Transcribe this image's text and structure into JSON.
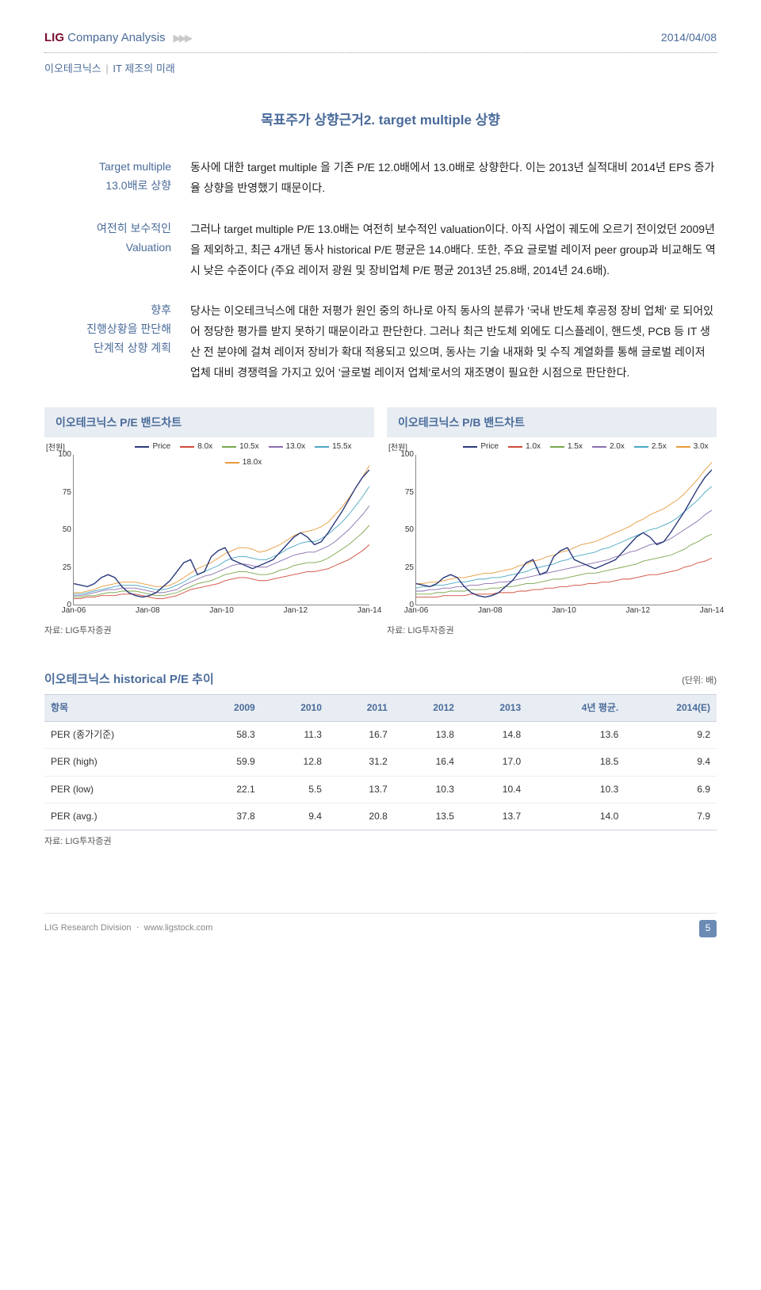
{
  "header": {
    "brand_lig": "LIG",
    "brand_rest": " Company Analysis",
    "arrows": "▶▶▶",
    "date": "2014/04/08",
    "subhead_company": "이오테크닉스",
    "subhead_sep": "|",
    "subhead_desc": "IT 제조의 미래"
  },
  "title": "목표주가 상향근거2. target multiple 상향",
  "paragraphs": [
    {
      "label": "Target multiple\n13.0배로 상향",
      "text": "동사에 대한 target multiple 을 기존 P/E 12.0배에서 13.0배로 상향한다. 이는 2013년 실적대비 2014년 EPS 증가율 상향을 반영했기 때문이다."
    },
    {
      "label": "여전히 보수적인\nValuation",
      "text": "그러나 target multiple P/E 13.0배는 여전히 보수적인 valuation이다. 아직 사업이 궤도에 오르기 전이었던 2009년을 제외하고, 최근 4개년 동사 historical P/E 평균은 14.0배다. 또한, 주요 글로벌 레이저 peer group과 비교해도 역시 낮은 수준이다 (주요 레이저 광원 및 장비업체 P/E 평균 2013년 25.8배, 2014년 24.6배)."
    },
    {
      "label": "향후\n진행상황을 판단해\n단계적 상향 계획",
      "text": "당사는 이오테크닉스에 대한 저평가 원인 중의 하나로 아직 동사의 분류가 '국내 반도체 후공정 장비 업체' 로 되어있어 정당한 평가를 받지 못하기 때문이라고 판단한다. 그러나 최근 반도체 외에도 디스플레이, 핸드셋, PCB 등 IT 생산 전 분야에 걸쳐 레이저 장비가 확대 적용되고 있으며, 동사는 기술 내재화 및 수직 계열화를 통해 글로벌 레이저 업체 대비 경쟁력을 가지고 있어 '글로벌 레이저 업체'로서의 재조명이 필요한 시점으로 판단한다."
    }
  ],
  "charts": {
    "yunit": "[천원]",
    "ylim": [
      0,
      100
    ],
    "yticks": [
      0,
      25,
      50,
      75,
      100
    ],
    "xticks": [
      "Jan-06",
      "Jan-08",
      "Jan-10",
      "Jan-12",
      "Jan-14"
    ],
    "colors": {
      "price": "#2b3a7a",
      "s1": "#d14b3a",
      "s2": "#7aa64b",
      "s3": "#8a6fb0",
      "s4": "#4aa8c4",
      "s5": "#e69a3c"
    },
    "left": {
      "title": "이오테크닉스 P/E 밴드차트",
      "source": "자료: LIG투자증권",
      "legend": [
        {
          "label": "Price",
          "colorKey": "price"
        },
        {
          "label": "8.0x",
          "colorKey": "s1"
        },
        {
          "label": "10.5x",
          "colorKey": "s2"
        },
        {
          "label": "13.0x",
          "colorKey": "s3"
        },
        {
          "label": "15.5x",
          "colorKey": "s4"
        },
        {
          "label": "18.0x",
          "colorKey": "s5"
        }
      ],
      "series": {
        "price": [
          14,
          13,
          12,
          14,
          18,
          20,
          18,
          12,
          8,
          6,
          5,
          6,
          8,
          12,
          16,
          22,
          28,
          30,
          20,
          22,
          32,
          36,
          38,
          30,
          28,
          26,
          24,
          26,
          28,
          30,
          35,
          40,
          45,
          48,
          45,
          40,
          42,
          48,
          55,
          62,
          70,
          78,
          85,
          90
        ],
        "s1": [
          4,
          4,
          5,
          5,
          6,
          6,
          6,
          7,
          7,
          7,
          6,
          5,
          4,
          4,
          5,
          6,
          8,
          10,
          11,
          12,
          13,
          14,
          16,
          17,
          18,
          18,
          17,
          16,
          16,
          17,
          18,
          19,
          20,
          21,
          22,
          22,
          23,
          24,
          26,
          28,
          30,
          33,
          36,
          40
        ],
        "s2": [
          5,
          5,
          6,
          6,
          7,
          8,
          8,
          9,
          9,
          9,
          8,
          7,
          6,
          6,
          7,
          8,
          10,
          12,
          14,
          15,
          16,
          18,
          20,
          21,
          22,
          22,
          21,
          20,
          20,
          21,
          23,
          24,
          26,
          27,
          28,
          28,
          29,
          31,
          34,
          37,
          40,
          44,
          48,
          53
        ],
        "s3": [
          6,
          6,
          7,
          8,
          9,
          10,
          10,
          11,
          11,
          11,
          10,
          9,
          8,
          8,
          9,
          10,
          13,
          15,
          17,
          19,
          20,
          22,
          24,
          26,
          27,
          27,
          26,
          25,
          25,
          27,
          29,
          31,
          33,
          34,
          35,
          35,
          37,
          39,
          42,
          46,
          50,
          55,
          60,
          66
        ],
        "s4": [
          7,
          7,
          8,
          9,
          10,
          11,
          12,
          13,
          13,
          13,
          12,
          11,
          10,
          10,
          11,
          13,
          15,
          18,
          20,
          22,
          24,
          26,
          29,
          31,
          32,
          32,
          31,
          30,
          30,
          32,
          34,
          37,
          39,
          41,
          42,
          42,
          44,
          47,
          51,
          55,
          60,
          66,
          72,
          79
        ],
        "s5": [
          8,
          8,
          9,
          10,
          12,
          13,
          14,
          15,
          15,
          15,
          14,
          13,
          12,
          12,
          13,
          15,
          18,
          21,
          24,
          26,
          28,
          31,
          34,
          36,
          38,
          38,
          37,
          35,
          36,
          38,
          40,
          43,
          46,
          48,
          49,
          50,
          52,
          55,
          60,
          65,
          71,
          78,
          85,
          93
        ]
      }
    },
    "right": {
      "title": "이오테크닉스 P/B 밴드차트",
      "source": "자료: LIG투자증권",
      "legend": [
        {
          "label": "Price",
          "colorKey": "price"
        },
        {
          "label": "1.0x",
          "colorKey": "s1"
        },
        {
          "label": "1.5x",
          "colorKey": "s2"
        },
        {
          "label": "2.0x",
          "colorKey": "s3"
        },
        {
          "label": "2.5x",
          "colorKey": "s4"
        },
        {
          "label": "3.0x",
          "colorKey": "s5"
        }
      ],
      "series": {
        "price": [
          14,
          13,
          12,
          14,
          18,
          20,
          18,
          12,
          8,
          6,
          5,
          6,
          8,
          12,
          16,
          22,
          28,
          30,
          20,
          22,
          32,
          36,
          38,
          30,
          28,
          26,
          24,
          26,
          28,
          30,
          35,
          40,
          45,
          48,
          45,
          40,
          42,
          48,
          55,
          62,
          70,
          78,
          85,
          90
        ],
        "s1": [
          5,
          5,
          5,
          5,
          6,
          6,
          6,
          6,
          7,
          7,
          7,
          7,
          8,
          8,
          8,
          9,
          9,
          10,
          10,
          11,
          11,
          12,
          12,
          13,
          13,
          14,
          14,
          15,
          15,
          16,
          17,
          17,
          18,
          19,
          20,
          20,
          21,
          22,
          23,
          25,
          26,
          28,
          29,
          31
        ],
        "s2": [
          7,
          7,
          7,
          8,
          8,
          9,
          9,
          9,
          10,
          10,
          10,
          11,
          11,
          12,
          12,
          13,
          14,
          14,
          15,
          16,
          17,
          17,
          18,
          19,
          20,
          21,
          21,
          22,
          23,
          24,
          25,
          26,
          27,
          29,
          30,
          31,
          32,
          33,
          35,
          37,
          40,
          42,
          45,
          47
        ],
        "s3": [
          9,
          9,
          10,
          10,
          11,
          11,
          12,
          12,
          13,
          13,
          14,
          14,
          15,
          15,
          16,
          17,
          18,
          19,
          20,
          21,
          22,
          23,
          24,
          25,
          26,
          27,
          28,
          29,
          30,
          32,
          33,
          35,
          36,
          38,
          40,
          41,
          42,
          44,
          47,
          50,
          53,
          56,
          60,
          63
        ],
        "s4": [
          11,
          12,
          12,
          13,
          13,
          14,
          15,
          15,
          16,
          17,
          17,
          18,
          18,
          19,
          20,
          21,
          22,
          24,
          25,
          26,
          27,
          29,
          30,
          32,
          33,
          34,
          35,
          37,
          38,
          40,
          42,
          44,
          46,
          48,
          50,
          51,
          53,
          55,
          58,
          62,
          66,
          70,
          75,
          79
        ],
        "s5": [
          14,
          14,
          15,
          15,
          16,
          17,
          18,
          18,
          19,
          20,
          21,
          21,
          22,
          23,
          24,
          26,
          27,
          29,
          30,
          32,
          33,
          35,
          36,
          38,
          40,
          41,
          42,
          44,
          46,
          48,
          50,
          52,
          55,
          57,
          60,
          62,
          64,
          67,
          70,
          74,
          79,
          84,
          90,
          95
        ]
      }
    }
  },
  "table": {
    "title": "이오테크닉스 historical P/E 추이",
    "unit": "(단위: 배)",
    "source": "자료: LIG투자증권",
    "columns": [
      "항목",
      "2009",
      "2010",
      "2011",
      "2012",
      "2013",
      "4년 평균.",
      "2014(E)"
    ],
    "rows": [
      [
        "PER (종가기준)",
        "58.3",
        "11.3",
        "16.7",
        "13.8",
        "14.8",
        "13.6",
        "9.2"
      ],
      [
        "PER (high)",
        "59.9",
        "12.8",
        "31.2",
        "16.4",
        "17.0",
        "18.5",
        "9.4"
      ],
      [
        "PER (low)",
        "22.1",
        "5.5",
        "13.7",
        "10.3",
        "10.4",
        "10.3",
        "6.9"
      ],
      [
        "PER (avg.)",
        "37.8",
        "9.4",
        "20.8",
        "13.5",
        "13.7",
        "14.0",
        "7.9"
      ]
    ]
  },
  "footer": {
    "left": "LIG Research Division ㆍ www.ligstock.com",
    "page": "5"
  }
}
